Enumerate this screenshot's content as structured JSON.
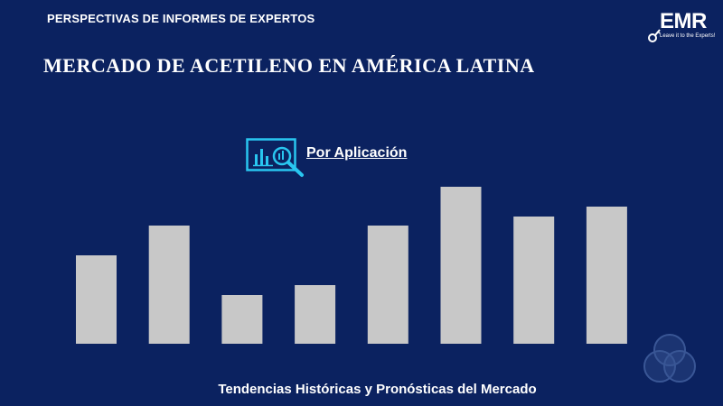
{
  "header": {
    "label": "PERSPECTIVAS DE INFORMES DE EXPERTOS",
    "title": "MERCADO DE ACETILENO EN AMÉRICA LATINA"
  },
  "logo": {
    "text": "EMR",
    "tagline": "Leave it to the Experts!"
  },
  "segment": {
    "icon": "chart-magnifier-icon",
    "label": "Por Aplicación"
  },
  "footer": {
    "text": "Tendencias Históricas y Pronósticas del Mercado"
  },
  "colors": {
    "background": "#0b2260",
    "bar": "#c8c8c8",
    "accent": "#29c6f0",
    "venn": "#3a5796"
  },
  "chart_data": {
    "type": "bar",
    "categories": [
      "",
      "",
      "",
      "",
      "",
      "",
      "",
      ""
    ],
    "values": [
      98,
      131,
      54,
      65,
      131,
      174,
      141,
      152
    ],
    "ylim": [
      0,
      200
    ],
    "grid": false
  }
}
